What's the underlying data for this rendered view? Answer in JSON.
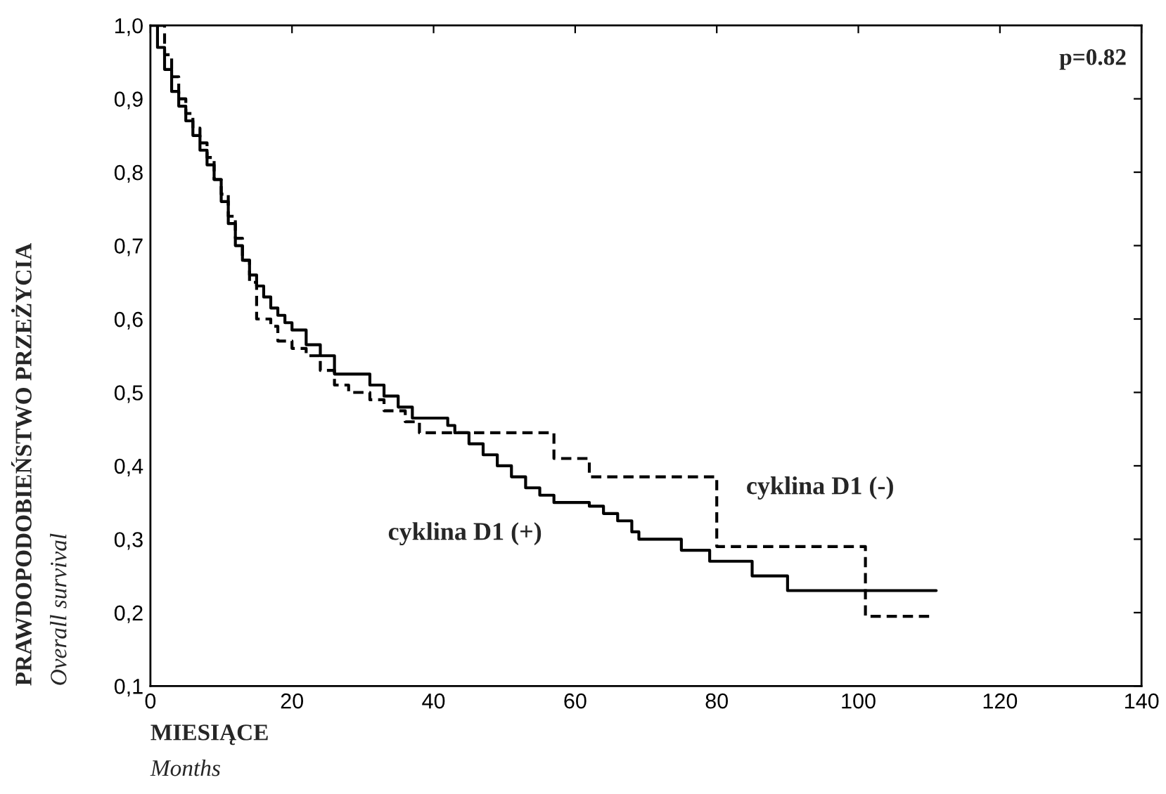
{
  "chart_data": {
    "type": "step",
    "xlabel": "MIESIĄCE\nMonths",
    "ylabel": "PRAWDOPODOBIEŃSTWO PRZEŻYCIA\nOverall survival",
    "annotations": [
      "p=0.82"
    ],
    "xlim": [
      0,
      140
    ],
    "xticks": [
      0,
      20,
      40,
      60,
      80,
      100,
      120,
      140
    ],
    "ylim": [
      0.1,
      1.0
    ],
    "yticks": [
      {
        "value": 0.1,
        "label": "0,1"
      },
      {
        "value": 0.2,
        "label": "0,2"
      },
      {
        "value": 0.3,
        "label": "0,3"
      },
      {
        "value": 0.4,
        "label": "0,4"
      },
      {
        "value": 0.5,
        "label": "0,5"
      },
      {
        "value": 0.6,
        "label": "0,6"
      },
      {
        "value": 0.7,
        "label": "0,7"
      },
      {
        "value": 0.8,
        "label": "0,8"
      },
      {
        "value": 0.9,
        "label": "0,9"
      },
      {
        "value": 1.0,
        "label": "1,0"
      }
    ],
    "grid": false,
    "legend": false,
    "series": [
      {
        "name": "cyklina D1 (+)",
        "color": "#000000",
        "line_style": "solid",
        "x": [
          0,
          1,
          2,
          3,
          4,
          5,
          6,
          7,
          8,
          9,
          10,
          11,
          12,
          13,
          14,
          15,
          16,
          17,
          18,
          19,
          20,
          22,
          24,
          26,
          31,
          33,
          35,
          37,
          42,
          43,
          45,
          47,
          49,
          51,
          53,
          55,
          57,
          62,
          64,
          66,
          68,
          69,
          75,
          79,
          85,
          90,
          111
        ],
        "values": [
          1.0,
          0.97,
          0.94,
          0.91,
          0.89,
          0.87,
          0.85,
          0.83,
          0.81,
          0.79,
          0.76,
          0.73,
          0.7,
          0.68,
          0.66,
          0.645,
          0.63,
          0.615,
          0.605,
          0.595,
          0.585,
          0.565,
          0.55,
          0.525,
          0.51,
          0.495,
          0.48,
          0.465,
          0.455,
          0.445,
          0.43,
          0.415,
          0.4,
          0.385,
          0.37,
          0.36,
          0.35,
          0.345,
          0.335,
          0.325,
          0.31,
          0.3,
          0.285,
          0.27,
          0.25,
          0.23,
          0.23
        ]
      },
      {
        "name": "cyklina D1 (-)",
        "color": "#000000",
        "line_style": "dashed",
        "x": [
          0,
          2,
          3,
          4,
          5,
          6,
          7,
          8,
          9,
          10,
          11,
          12,
          13,
          14,
          15,
          17,
          18,
          20,
          22,
          24,
          26,
          28,
          31,
          33,
          36,
          38,
          57,
          62,
          80,
          101,
          110
        ],
        "values": [
          1.0,
          0.96,
          0.93,
          0.9,
          0.88,
          0.86,
          0.84,
          0.82,
          0.79,
          0.77,
          0.74,
          0.71,
          0.68,
          0.65,
          0.6,
          0.59,
          0.57,
          0.56,
          0.55,
          0.53,
          0.51,
          0.5,
          0.49,
          0.475,
          0.46,
          0.445,
          0.41,
          0.385,
          0.29,
          0.195,
          0.195
        ]
      }
    ]
  }
}
